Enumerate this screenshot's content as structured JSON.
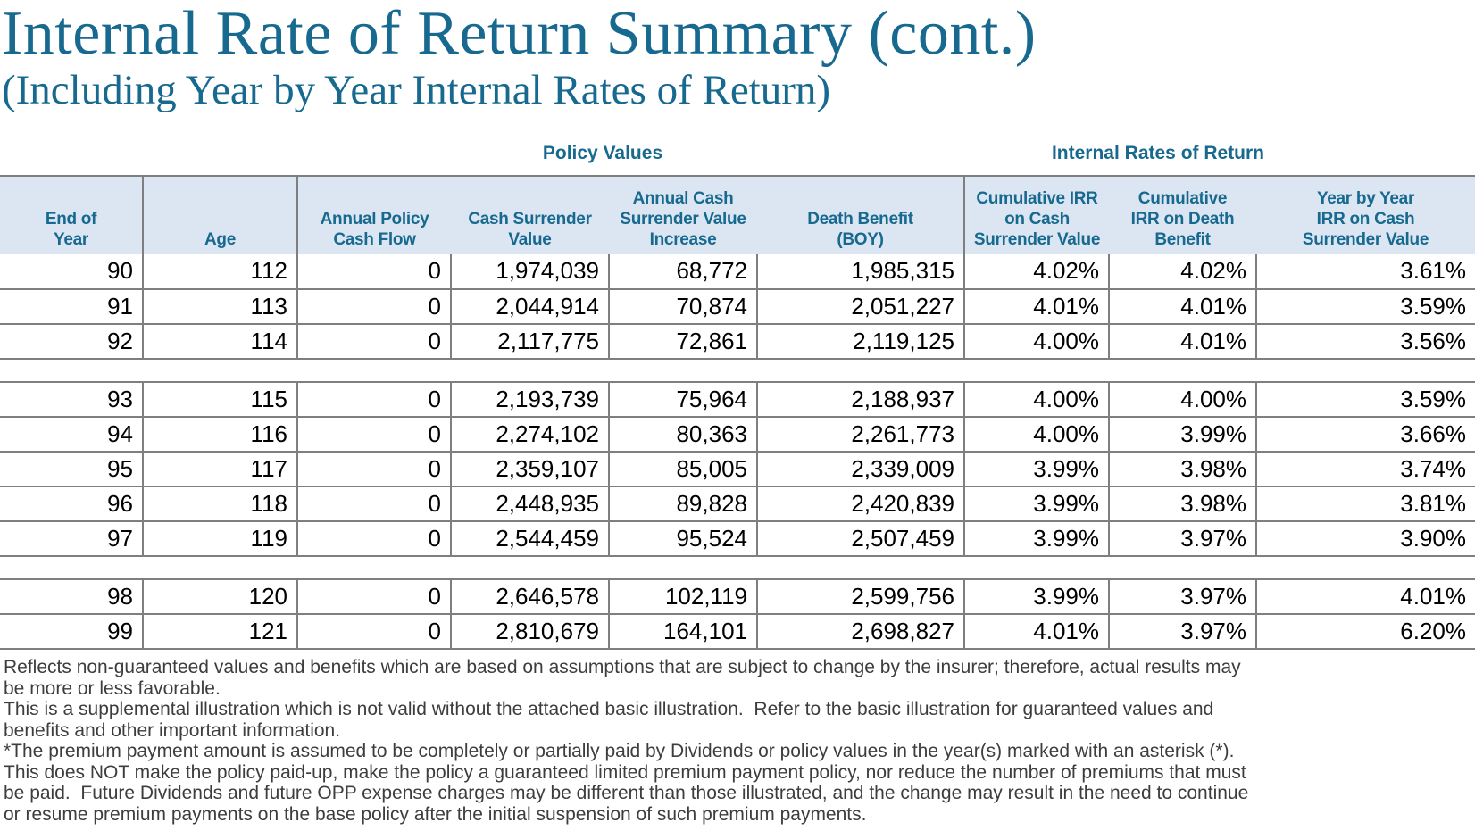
{
  "page": {
    "title": "Internal Rate of Return Summary (cont.)",
    "subtitle": "(Including Year by Year Internal Rates of Return)"
  },
  "table": {
    "group_headers": [
      {
        "label": "Policy Values"
      },
      {
        "label": "Internal Rates of Return"
      }
    ],
    "columns": [
      {
        "label": "End of\nYear"
      },
      {
        "label": "Age"
      },
      {
        "label": "Annual Policy\nCash Flow"
      },
      {
        "label": "Cash Surrender\nValue"
      },
      {
        "label": "Annual Cash\nSurrender Value\nIncrease"
      },
      {
        "label": "Death Benefit\n(BOY)"
      },
      {
        "label": "Cumulative IRR\non Cash\nSurrender Value"
      },
      {
        "label": "Cumulative\nIRR on Death\nBenefit"
      },
      {
        "label": "Year by Year\nIRR on Cash\nSurrender Value"
      }
    ],
    "groups": [
      {
        "rows": [
          [
            "90",
            "112",
            "0",
            "1,974,039",
            "68,772",
            "1,985,315",
            "4.02%",
            "4.02%",
            "3.61%"
          ],
          [
            "91",
            "113",
            "0",
            "2,044,914",
            "70,874",
            "2,051,227",
            "4.01%",
            "4.01%",
            "3.59%"
          ],
          [
            "92",
            "114",
            "0",
            "2,117,775",
            "72,861",
            "2,119,125",
            "4.00%",
            "4.01%",
            "3.56%"
          ]
        ]
      },
      {
        "rows": [
          [
            "93",
            "115",
            "0",
            "2,193,739",
            "75,964",
            "2,188,937",
            "4.00%",
            "4.00%",
            "3.59%"
          ],
          [
            "94",
            "116",
            "0",
            "2,274,102",
            "80,363",
            "2,261,773",
            "4.00%",
            "3.99%",
            "3.66%"
          ],
          [
            "95",
            "117",
            "0",
            "2,359,107",
            "85,005",
            "2,339,009",
            "3.99%",
            "3.98%",
            "3.74%"
          ],
          [
            "96",
            "118",
            "0",
            "2,448,935",
            "89,828",
            "2,420,839",
            "3.99%",
            "3.98%",
            "3.81%"
          ],
          [
            "97",
            "119",
            "0",
            "2,544,459",
            "95,524",
            "2,507,459",
            "3.99%",
            "3.97%",
            "3.90%"
          ]
        ]
      },
      {
        "rows": [
          [
            "98",
            "120",
            "0",
            "2,646,578",
            "102,119",
            "2,599,756",
            "3.99%",
            "3.97%",
            "4.01%"
          ],
          [
            "99",
            "121",
            "0",
            "2,810,679",
            "164,101",
            "2,698,827",
            "4.01%",
            "3.97%",
            "6.20%"
          ]
        ]
      }
    ]
  },
  "footnotes": [
    "Reflects non-guaranteed values and benefits which are based on assumptions that are subject to change by the insurer; therefore, actual results may\nbe more or less favorable.",
    "This is a supplemental illustration which is not valid without the attached basic illustration.  Refer to the basic illustration for guaranteed values and\nbenefits and other important information.",
    "*The premium payment amount is assumed to be completely or partially paid by Dividends or policy values in the year(s) marked with an asterisk (*).\nThis does NOT make the policy paid-up, make the policy a guaranteed limited premium payment policy, nor reduce the number of premiums that must\nbe paid.  Future Dividends and future OPP expense charges may be different than those illustrated, and the change may result in the need to continue\nor resume premium payments on the base policy after the initial suspension of such premium payments."
  ],
  "colors": {
    "accent": "#17698F",
    "header_bg": "#DCE6F2",
    "border": "#7F7F7F",
    "data_text": "#000000",
    "footnote_text": "#3D3D3D",
    "page_bg": "#FFFFFF"
  }
}
